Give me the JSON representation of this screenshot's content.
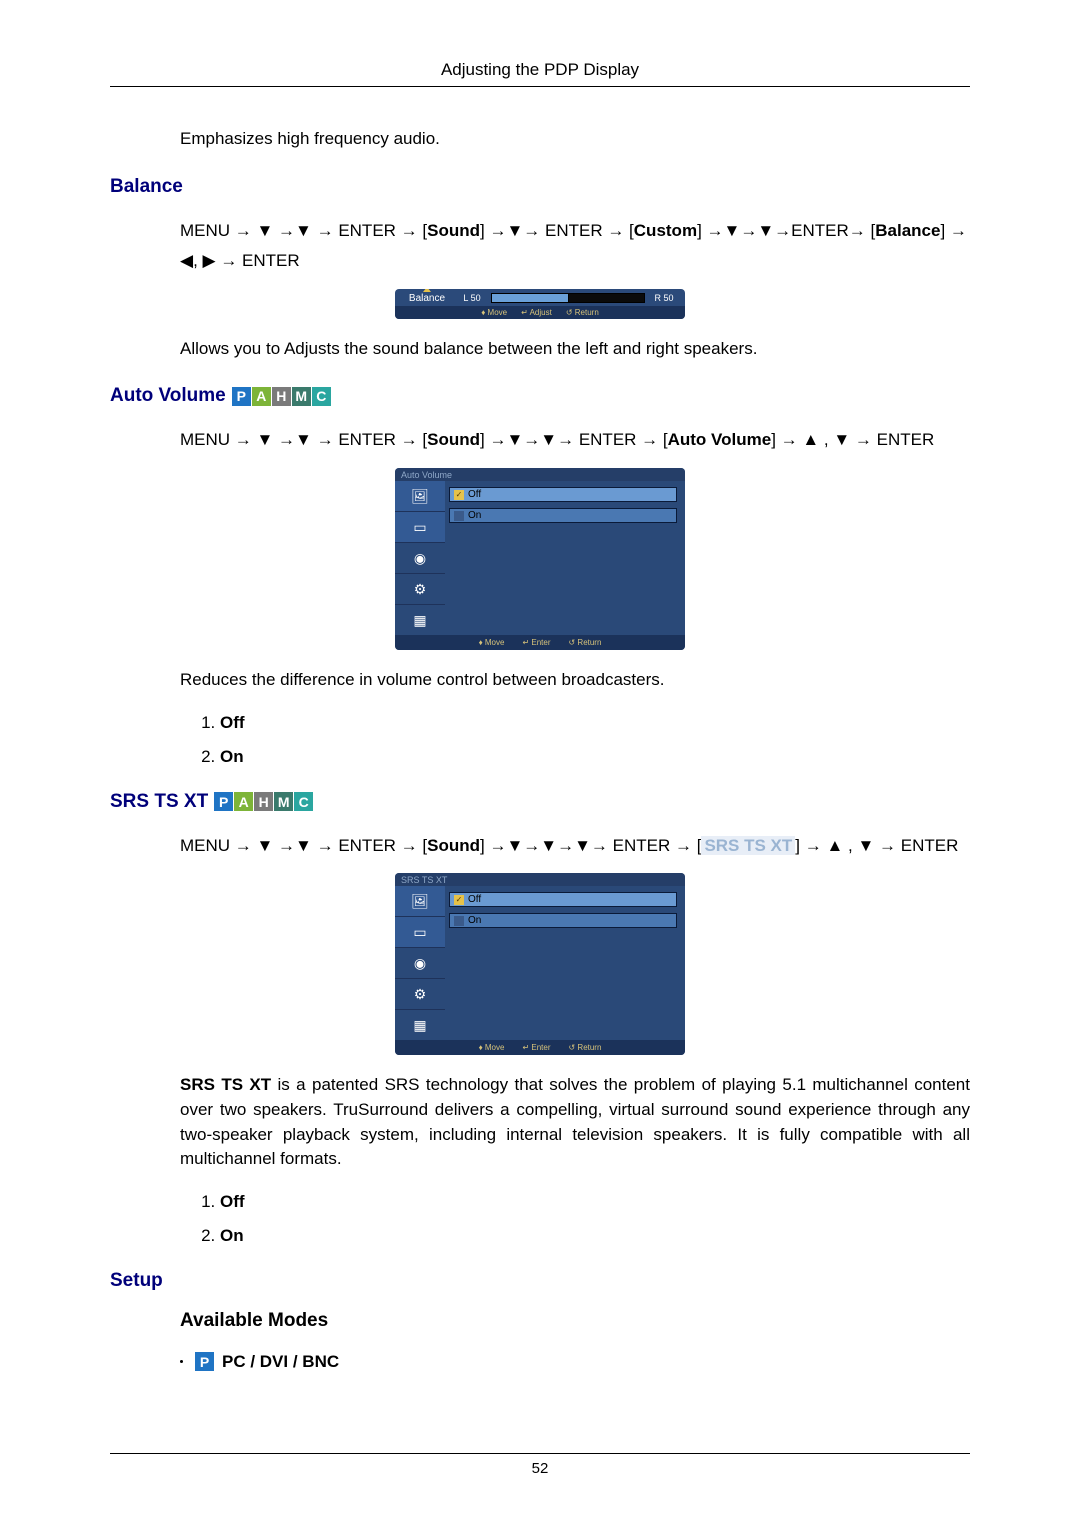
{
  "header": {
    "title": "Adjusting the PDP Display"
  },
  "intro_text": "Emphasizes high frequency audio.",
  "balance": {
    "heading": "Balance",
    "path_parts": {
      "menu": "MENU",
      "enter": "ENTER",
      "sound": "Sound",
      "custom": "Custom",
      "balance": "Balance"
    },
    "osd": {
      "label": "Balance",
      "left": "L 50",
      "right": "R 50",
      "fill_pct": 50,
      "footer": [
        "♦ Move",
        "↵ Adjust",
        "↺ Return"
      ]
    },
    "desc": "Allows you to Adjusts the sound balance between the left and right speakers."
  },
  "auto_volume": {
    "heading": "Auto Volume",
    "badges": [
      "P",
      "A",
      "H",
      "M",
      "C"
    ],
    "path_parts": {
      "menu": "MENU",
      "enter": "ENTER",
      "sound": "Sound",
      "auto_volume": "Auto Volume"
    },
    "osd": {
      "title": "Auto Volume",
      "options": [
        {
          "label": "Off",
          "selected": true
        },
        {
          "label": "On",
          "selected": false
        }
      ],
      "footer": [
        "♦ Move",
        "↵ Enter",
        "↺ Return"
      ]
    },
    "desc": "Reduces the difference in volume control between broadcasters.",
    "list": [
      "Off",
      "On"
    ]
  },
  "srs": {
    "heading": "SRS TS XT",
    "badges": [
      "P",
      "A",
      "H",
      "M",
      "C"
    ],
    "path_parts": {
      "menu": "MENU",
      "enter": "ENTER",
      "sound": "Sound",
      "srs": "SRS TS XT"
    },
    "osd": {
      "title": "SRS TS XT",
      "options": [
        {
          "label": "Off",
          "selected": true
        },
        {
          "label": "On",
          "selected": false
        }
      ],
      "footer": [
        "♦ Move",
        "↵ Enter",
        "↺ Return"
      ]
    },
    "desc_lead": "SRS TS XT",
    "desc_rest": " is a patented SRS technology that solves the problem of playing 5.1 multichannel content over two speakers. TruSurround delivers a compelling, virtual surround sound experience through any two-speaker playback system, including internal television speakers. It is fully compatible with all multichannel formats.",
    "list": [
      "Off",
      "On"
    ]
  },
  "setup": {
    "heading": "Setup",
    "sub": "Available Modes",
    "mode_badge": "P",
    "mode_label": "PC / DVI / BNC"
  },
  "page_number": "52"
}
